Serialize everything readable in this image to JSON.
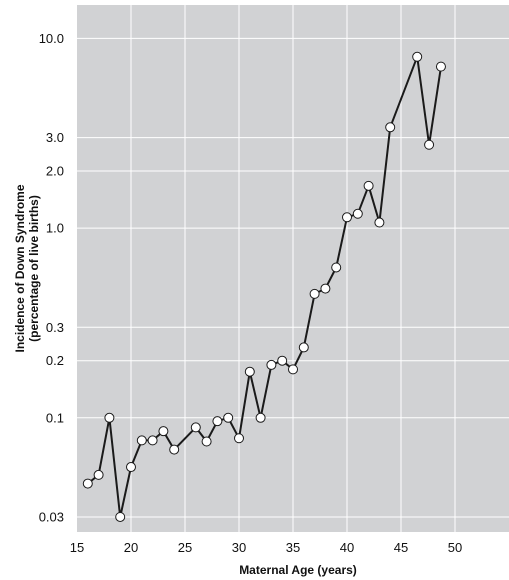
{
  "chart_data": {
    "type": "line",
    "xlabel": "Maternal Age (years)",
    "ylabel_line1": "Incidence of Down Syndrome",
    "ylabel_line2": "(percentage of live births)",
    "x_scale": "linear",
    "y_scale": "log",
    "xlim": [
      15,
      55
    ],
    "ylim": [
      0.025,
      15
    ],
    "x_ticks": [
      15,
      20,
      25,
      30,
      35,
      40,
      45,
      50
    ],
    "x_tick_labels": [
      "15",
      "20",
      "25",
      "30",
      "35",
      "40",
      "45",
      "50"
    ],
    "y_ticks": [
      0.03,
      0.1,
      0.2,
      0.3,
      1.0,
      2.0,
      3.0,
      10.0
    ],
    "y_tick_labels": [
      "0.03",
      "0.1",
      "0.2",
      "0.3",
      "1.0",
      "2.0",
      "3.0",
      "10.0"
    ],
    "grid": true,
    "legend": "none",
    "series": [
      {
        "x": [
          16,
          17,
          18,
          19,
          20,
          21,
          22,
          23,
          24,
          26,
          27,
          28,
          29,
          30,
          31,
          32,
          33,
          34,
          35,
          36,
          37,
          38,
          39,
          40,
          41,
          42,
          43,
          44,
          46.5,
          47.6,
          48.7
        ],
        "y": [
          0.045,
          0.05,
          0.1,
          0.03,
          0.055,
          0.076,
          0.076,
          0.085,
          0.068,
          0.089,
          0.075,
          0.096,
          0.1,
          0.078,
          0.175,
          0.1,
          0.19,
          0.2,
          0.18,
          0.235,
          0.45,
          0.48,
          0.62,
          1.14,
          1.19,
          1.67,
          1.07,
          3.4,
          8.0,
          2.75,
          7.1
        ]
      }
    ],
    "colors": {
      "plot_background": "#d1d2d4",
      "grid": "#ffffff",
      "line": "#1a1a1a",
      "marker_fill": "#ffffff",
      "marker_stroke": "#1a1a1a"
    }
  }
}
